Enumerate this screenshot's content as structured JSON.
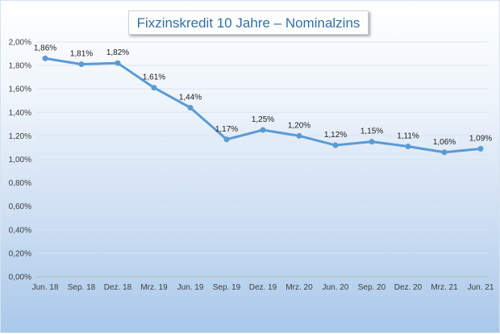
{
  "chart_data": {
    "type": "line",
    "title": "Fixzinskredit 10 Jahre – Nominalzins",
    "categories": [
      "Jun. 18",
      "Sep. 18",
      "Dez. 18",
      "Mrz. 19",
      "Jun. 19",
      "Sep. 19",
      "Dez. 19",
      "Mrz. 20",
      "Jun. 20",
      "Sep. 20",
      "Dez. 20",
      "Mrz. 21",
      "Jun. 21"
    ],
    "series": [
      {
        "values": [
          1.86,
          1.81,
          1.82,
          1.61,
          1.44,
          1.17,
          1.25,
          1.2,
          1.12,
          1.15,
          1.11,
          1.06,
          1.09
        ],
        "labels": [
          "1,86%",
          "1,81%",
          "1,82%",
          "1,61%",
          "1,44%",
          "1,17%",
          "1,25%",
          "1,20%",
          "1,12%",
          "1,15%",
          "1,11%",
          "1,06%",
          "1,09%"
        ]
      }
    ],
    "y_ticks": [
      0,
      0.2,
      0.4,
      0.6,
      0.8,
      1.0,
      1.2,
      1.4,
      1.6,
      1.8,
      2.0
    ],
    "y_tick_labels": [
      "0,00%",
      "0,20%",
      "0,40%",
      "0,60%",
      "0,80%",
      "1,00%",
      "1,20%",
      "1,40%",
      "1,60%",
      "1,80%",
      "2,00%"
    ],
    "ylim": [
      0,
      2.0
    ],
    "grid": true,
    "line_color": "#5b9bd5",
    "grid_color": "#d9e5f1"
  }
}
